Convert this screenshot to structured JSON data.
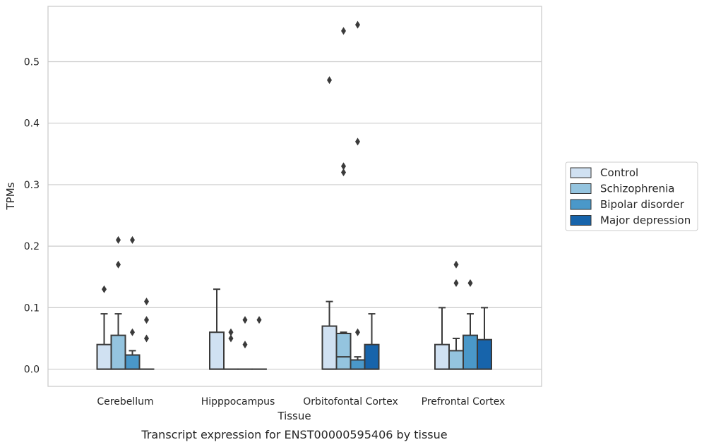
{
  "caption": "Transcript expression for ENST00000595406 by tissue",
  "chart_data": {
    "type": "box",
    "xlabel": "Tissue",
    "ylabel": "TPMs",
    "ylim": [
      -0.028,
      0.59
    ],
    "yticks": [
      "0.0",
      "0.1",
      "0.2",
      "0.3",
      "0.4",
      "0.5"
    ],
    "grid": "horizontal",
    "legend_position": "right",
    "categories": [
      "Cerebellum",
      "Hipppocampus",
      "Orbitofontal Cortex",
      "Prefrontal Cortex"
    ],
    "series": [
      {
        "name": "Control",
        "color": "#d0e1f2",
        "boxes": [
          {
            "q1": 0.0,
            "median": 0.0,
            "q3": 0.04,
            "whisker_low": 0.0,
            "whisker_high": 0.09,
            "outliers": [
              0.13
            ]
          },
          {
            "q1": 0.0,
            "median": 0.0,
            "q3": 0.06,
            "whisker_low": 0.0,
            "whisker_high": 0.13,
            "outliers": []
          },
          {
            "q1": 0.0,
            "median": 0.0,
            "q3": 0.07,
            "whisker_low": 0.0,
            "whisker_high": 0.11,
            "outliers": [
              0.47
            ]
          },
          {
            "q1": 0.0,
            "median": 0.0,
            "q3": 0.04,
            "whisker_low": 0.0,
            "whisker_high": 0.1,
            "outliers": []
          }
        ]
      },
      {
        "name": "Schizophrenia",
        "color": "#94c4df",
        "boxes": [
          {
            "q1": 0.0,
            "median": 0.0,
            "q3": 0.055,
            "whisker_low": 0.0,
            "whisker_high": 0.09,
            "outliers": [
              0.17,
              0.21
            ]
          },
          {
            "q1": 0.0,
            "median": 0.0,
            "q3": 0.0,
            "whisker_low": 0.0,
            "whisker_high": 0.0,
            "outliers": [
              0.05,
              0.06
            ]
          },
          {
            "q1": 0.0,
            "median": 0.02,
            "q3": 0.058,
            "whisker_low": 0.0,
            "whisker_high": 0.06,
            "outliers": [
              0.32,
              0.33,
              0.55
            ]
          },
          {
            "q1": 0.0,
            "median": 0.0,
            "q3": 0.03,
            "whisker_low": 0.0,
            "whisker_high": 0.05,
            "outliers": [
              0.14,
              0.17
            ]
          }
        ]
      },
      {
        "name": "Bipolar disorder",
        "color": "#4a98c9",
        "boxes": [
          {
            "q1": 0.0,
            "median": 0.0,
            "q3": 0.023,
            "whisker_low": 0.0,
            "whisker_high": 0.03,
            "outliers": [
              0.06,
              0.21
            ]
          },
          {
            "q1": 0.0,
            "median": 0.0,
            "q3": 0.0,
            "whisker_low": 0.0,
            "whisker_high": 0.0,
            "outliers": [
              0.04,
              0.08
            ]
          },
          {
            "q1": 0.0,
            "median": 0.0,
            "q3": 0.015,
            "whisker_low": 0.0,
            "whisker_high": 0.02,
            "outliers": [
              0.06,
              0.37,
              0.56
            ]
          },
          {
            "q1": 0.0,
            "median": 0.0,
            "q3": 0.055,
            "whisker_low": 0.0,
            "whisker_high": 0.09,
            "outliers": [
              0.14
            ]
          }
        ]
      },
      {
        "name": "Major depression",
        "color": "#1764ab",
        "boxes": [
          {
            "q1": 0.0,
            "median": 0.0,
            "q3": 0.0,
            "whisker_low": 0.0,
            "whisker_high": 0.0,
            "outliers": [
              0.05,
              0.08,
              0.11
            ]
          },
          {
            "q1": 0.0,
            "median": 0.0,
            "q3": 0.0,
            "whisker_low": 0.0,
            "whisker_high": 0.0,
            "outliers": [
              0.08
            ]
          },
          {
            "q1": 0.0,
            "median": 0.0,
            "q3": 0.04,
            "whisker_low": 0.0,
            "whisker_high": 0.09,
            "outliers": []
          },
          {
            "q1": 0.0,
            "median": 0.0,
            "q3": 0.048,
            "whisker_low": 0.0,
            "whisker_high": 0.1,
            "outliers": []
          }
        ]
      }
    ]
  }
}
